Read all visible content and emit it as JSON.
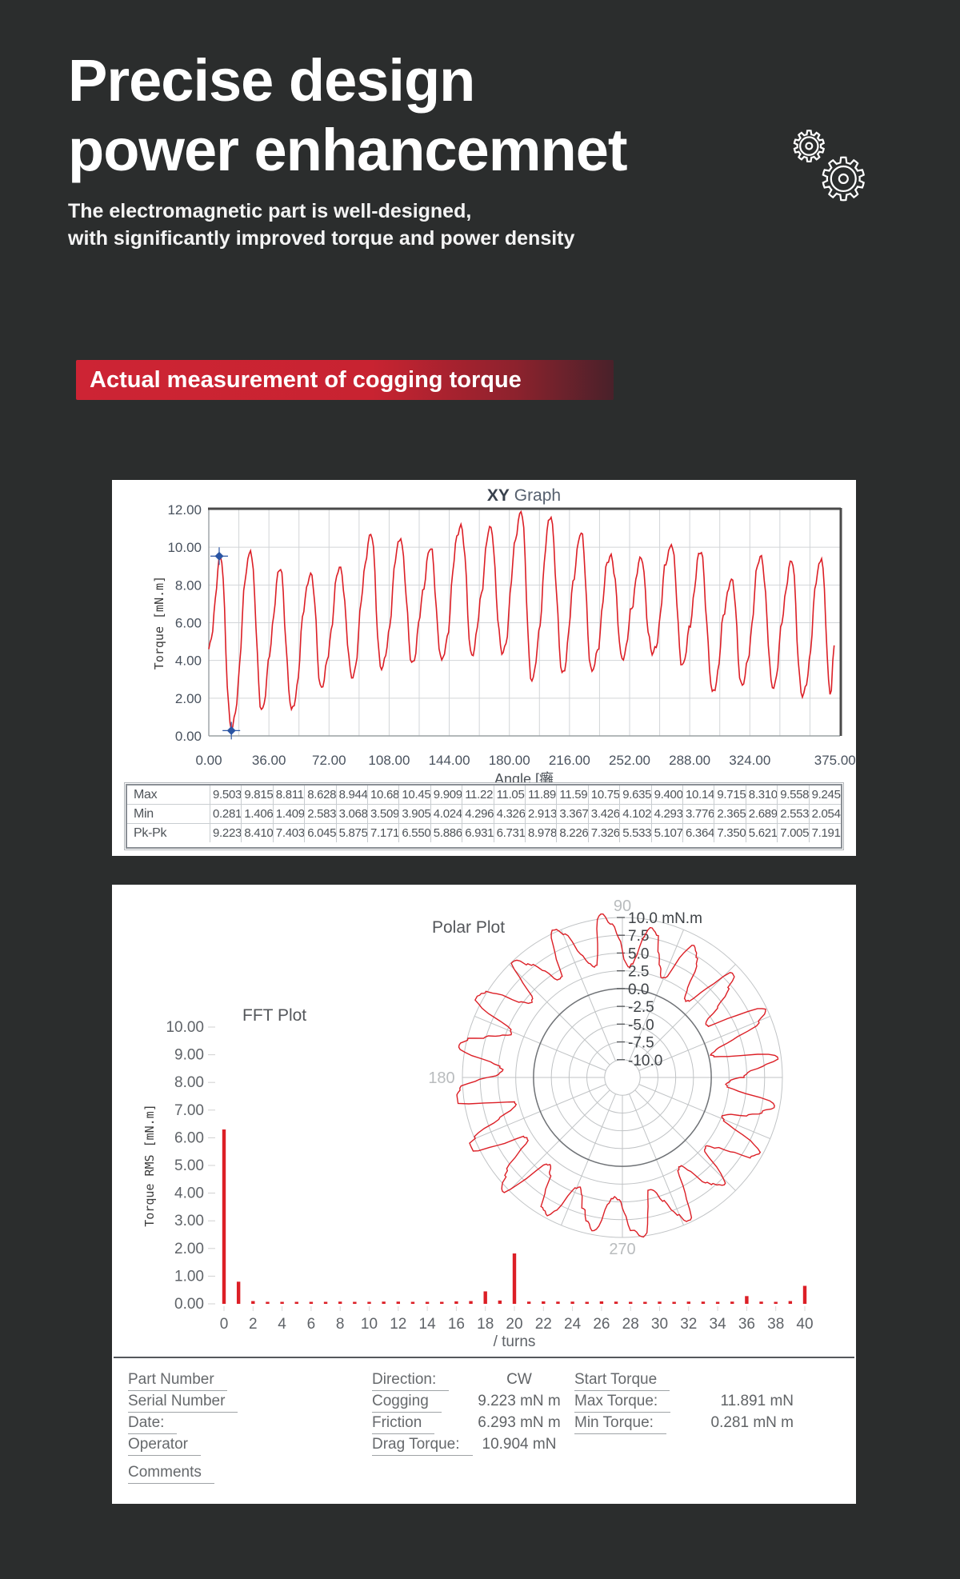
{
  "header": {
    "title_line1": "Precise design",
    "title_line2": "power enhancemnet",
    "subtitle_line1": "The electromagnetic part is well-designed,",
    "subtitle_line2": "with significantly improved torque and power density"
  },
  "icons": {
    "gear": "⚙"
  },
  "banner": {
    "label": "Actual measurement of cogging torque"
  },
  "palette": {
    "background": "#2b2d2d",
    "banner_red": "#cd2434",
    "line_red": "#dc1f26",
    "cursor_blue": "#2a55a4",
    "grid": "#d2d5d8",
    "frame_dark": "#4a4a4a",
    "frame_light": "#9aa0a4",
    "slate_text": "#49525e",
    "gray_text": "#5f6368",
    "polar_grid": "#c0c3c5",
    "polar_zero": "#6f7276",
    "polar_angle_text": "#b9bcbe",
    "axis_title_text": "#3c3c3c"
  },
  "chart_data": [
    {
      "id": "xy_graph",
      "type": "line",
      "title_bold": "XY",
      "title_rest": "Graph",
      "xlabel": "Angle [癱",
      "ylabel": "Torque [mN.m]",
      "xlim": [
        0,
        378
      ],
      "ylim": [
        0,
        12
      ],
      "x_ticks": [
        0,
        36,
        72,
        108,
        144,
        180,
        216,
        252,
        288,
        324,
        375
      ],
      "y_ticks": [
        0,
        2,
        4,
        6,
        8,
        10,
        12
      ],
      "grid_step_x_deg": 18,
      "window_deg": 18,
      "series": [
        {
          "name": "cogging torque",
          "window_max": [
            9.503,
            9.815,
            8.811,
            8.628,
            8.944,
            10.68,
            10.45,
            9.909,
            11.22,
            11.05,
            11.89,
            11.59,
            10.75,
            9.635,
            9.4,
            10.14,
            9.715,
            8.31,
            9.558,
            9.245
          ],
          "window_min": [
            0.281,
            1.406,
            1.409,
            2.583,
            3.068,
            3.509,
            3.905,
            4.024,
            4.296,
            4.326,
            2.913,
            3.367,
            3.426,
            4.102,
            4.293,
            3.776,
            2.365,
            2.689,
            2.553,
            2.054
          ]
        }
      ],
      "cursors": [
        {
          "x": 8,
          "y": 9.45
        },
        {
          "x": 14,
          "y": 0.28
        }
      ],
      "stats_table": {
        "rows": [
          {
            "label": "Max",
            "values": [
              "9.503",
              "9.815",
              "8.811",
              "8.628",
              "8.944",
              "10.68",
              "10.45",
              "9.909",
              "11.22",
              "11.05",
              "11.89",
              "11.59",
              "10.75",
              "9.635",
              "9.400",
              "10.14",
              "9.715",
              "8.310",
              "9.558",
              "9.245"
            ]
          },
          {
            "label": "Min",
            "values": [
              "0.281",
              "1.406",
              "1.409",
              "2.583",
              "3.068",
              "3.509",
              "3.905",
              "4.024",
              "4.296",
              "4.326",
              "2.913",
              "3.367",
              "3.426",
              "4.102",
              "4.293",
              "3.776",
              "2.365",
              "2.689",
              "2.553",
              "2.054"
            ]
          },
          {
            "label": "Pk-Pk",
            "values": [
              "9.223",
              "8.410",
              "7.403",
              "6.045",
              "5.875",
              "7.171",
              "6.550",
              "5.886",
              "6.931",
              "6.731",
              "8.978",
              "8.226",
              "7.326",
              "5.533",
              "5.107",
              "6.364",
              "7.350",
              "5.621",
              "7.005",
              "7.191"
            ]
          }
        ]
      }
    },
    {
      "id": "fft",
      "type": "bar",
      "title": "FFT Plot",
      "xlabel": "/ turns",
      "ylabel": "Torque RMS [mN.m]",
      "xlim": [
        0,
        40
      ],
      "ylim": [
        0,
        10
      ],
      "x_tick_step": 2,
      "y_tick_step": 1,
      "values": [
        6.3,
        0.8,
        0.1,
        0.06,
        0.07,
        0.06,
        0.07,
        0.06,
        0.08,
        0.07,
        0.07,
        0.08,
        0.08,
        0.07,
        0.06,
        0.07,
        0.09,
        0.1,
        0.45,
        0.12,
        1.82,
        0.08,
        0.09,
        0.08,
        0.08,
        0.07,
        0.09,
        0.08,
        0.07,
        0.06,
        0.08,
        0.07,
        0.08,
        0.08,
        0.07,
        0.08,
        0.28,
        0.08,
        0.07,
        0.1,
        0.65
      ]
    },
    {
      "id": "polar",
      "type": "polar-line",
      "title": "Polar Plot",
      "radial_ticks": [
        "10.0",
        "7.5",
        "5.0",
        "2.5",
        "0.0",
        "-2.5",
        "-5.0",
        "-7.5",
        "-10.0"
      ],
      "radial_tick_values": [
        10,
        7.5,
        5,
        2.5,
        0,
        -2.5,
        -5,
        -7.5,
        -10
      ],
      "radial_unit": "mN.m",
      "angle_labels": [
        "90",
        "180",
        "270"
      ],
      "angle_label_values": [
        90,
        180,
        270
      ],
      "spoke_step_deg": 22.5,
      "r_center_value": -12.5,
      "note": "same cogging torque trace plotted on polar axes"
    }
  ],
  "info_panel": {
    "left_labels": [
      "Part Number",
      "Serial Number",
      "Date:",
      "Operator",
      "Comments"
    ],
    "mid_rows": [
      {
        "label": "Direction:",
        "value": "CW"
      },
      {
        "label": "Cogging",
        "value": "9.223 mN m"
      },
      {
        "label": "Friction",
        "value": "6.293 mN m"
      },
      {
        "label": "Drag Torque:",
        "value": "10.904 mN"
      }
    ],
    "right_rows": [
      {
        "label": "Start Torque",
        "value": ""
      },
      {
        "label": "Max Torque:",
        "value": "11.891 mN"
      },
      {
        "label": "Min Torque:",
        "value": "0.281 mN m"
      }
    ]
  }
}
